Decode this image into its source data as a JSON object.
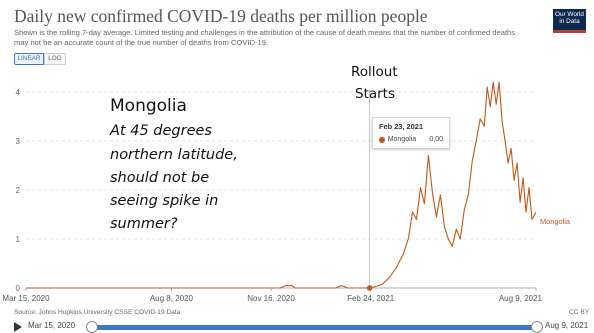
{
  "header": {
    "title": "Daily new confirmed COVID-19 deaths per million people",
    "subtitle": "Shown is the rolling 7-day average. Limited testing and challenges in the attribution of the cause of death means that the number of confirmed deaths may not be an accurate count of the true number of deaths from COVID-19.",
    "logo_line1": "Our World",
    "logo_line2": "in Data"
  },
  "controls": {
    "linear_label": "LINEAR",
    "log_label": "LOG",
    "selected": "linear"
  },
  "annotations": {
    "country": "Mongolia",
    "lines": [
      "At 45 degrees",
      "northern latitude,",
      "should not be",
      "seeing spike in",
      "summer?"
    ],
    "rollout_line1": "Rollout",
    "rollout_line2": "Starts"
  },
  "tooltip": {
    "date": "Feb 23, 2021",
    "entity": "Mongolia",
    "value": "0,00"
  },
  "footer": {
    "source": "Source: Johns Hopkins University CSSE COVID-19 Data",
    "license": "CC BY"
  },
  "timeline": {
    "start_label": "Mar 15, 2020",
    "end_label": "Aug 9, 2021"
  },
  "colors": {
    "series": "#c05917",
    "grid": "#dddddd",
    "accent": "#3b79c3"
  },
  "chart_data": {
    "type": "line",
    "title": "Daily new confirmed COVID-19 deaths per million people",
    "xlabel": "",
    "ylabel": "",
    "x_type": "date",
    "xlim": [
      "2020-03-15",
      "2021-08-09"
    ],
    "ylim": [
      0,
      4
    ],
    "y_ticks": [
      0,
      1,
      2,
      3,
      4
    ],
    "x_ticks": [
      {
        "date": "2020-03-15",
        "label": "Mar 15, 2020"
      },
      {
        "date": "2020-08-08",
        "label": "Aug 8, 2020"
      },
      {
        "date": "2020-11-16",
        "label": "Nov 16, 2020"
      },
      {
        "date": "2021-02-24",
        "label": "Feb 24, 2021"
      },
      {
        "date": "2021-08-09",
        "label": "Aug 9, 2021"
      }
    ],
    "grid": true,
    "legend": "end-label",
    "highlight": {
      "date": "2021-02-23",
      "value": 0.0
    },
    "series": [
      {
        "name": "Mongolia",
        "points": [
          [
            "2020-03-15",
            0
          ],
          [
            "2020-11-25",
            0
          ],
          [
            "2020-12-01",
            0.05
          ],
          [
            "2020-12-07",
            0.05
          ],
          [
            "2020-12-10",
            0
          ],
          [
            "2021-01-20",
            0
          ],
          [
            "2021-01-26",
            0.05
          ],
          [
            "2021-02-01",
            0
          ],
          [
            "2021-02-23",
            0
          ],
          [
            "2021-03-01",
            0.03
          ],
          [
            "2021-03-08",
            0.08
          ],
          [
            "2021-03-15",
            0.22
          ],
          [
            "2021-03-22",
            0.42
          ],
          [
            "2021-03-29",
            0.7
          ],
          [
            "2021-04-03",
            1.02
          ],
          [
            "2021-04-07",
            1.55
          ],
          [
            "2021-04-11",
            1.4
          ],
          [
            "2021-04-15",
            2.05
          ],
          [
            "2021-04-19",
            1.72
          ],
          [
            "2021-04-23",
            2.7
          ],
          [
            "2021-04-27",
            1.95
          ],
          [
            "2021-05-01",
            1.45
          ],
          [
            "2021-05-05",
            1.9
          ],
          [
            "2021-05-09",
            1.25
          ],
          [
            "2021-05-13",
            1.0
          ],
          [
            "2021-05-17",
            0.85
          ],
          [
            "2021-05-21",
            1.2
          ],
          [
            "2021-05-25",
            1.0
          ],
          [
            "2021-05-29",
            1.6
          ],
          [
            "2021-06-02",
            1.9
          ],
          [
            "2021-06-06",
            2.6
          ],
          [
            "2021-06-10",
            3.0
          ],
          [
            "2021-06-14",
            3.45
          ],
          [
            "2021-06-18",
            3.3
          ],
          [
            "2021-06-21",
            4.1
          ],
          [
            "2021-06-24",
            3.7
          ],
          [
            "2021-06-27",
            4.2
          ],
          [
            "2021-06-30",
            3.75
          ],
          [
            "2021-07-03",
            4.2
          ],
          [
            "2021-07-06",
            3.4
          ],
          [
            "2021-07-09",
            3.0
          ],
          [
            "2021-07-12",
            2.55
          ],
          [
            "2021-07-15",
            2.85
          ],
          [
            "2021-07-18",
            2.2
          ],
          [
            "2021-07-21",
            2.55
          ],
          [
            "2021-07-24",
            1.75
          ],
          [
            "2021-07-27",
            2.25
          ],
          [
            "2021-07-30",
            1.55
          ],
          [
            "2021-08-02",
            2.05
          ],
          [
            "2021-08-05",
            1.4
          ],
          [
            "2021-08-09",
            1.55
          ]
        ]
      }
    ]
  }
}
